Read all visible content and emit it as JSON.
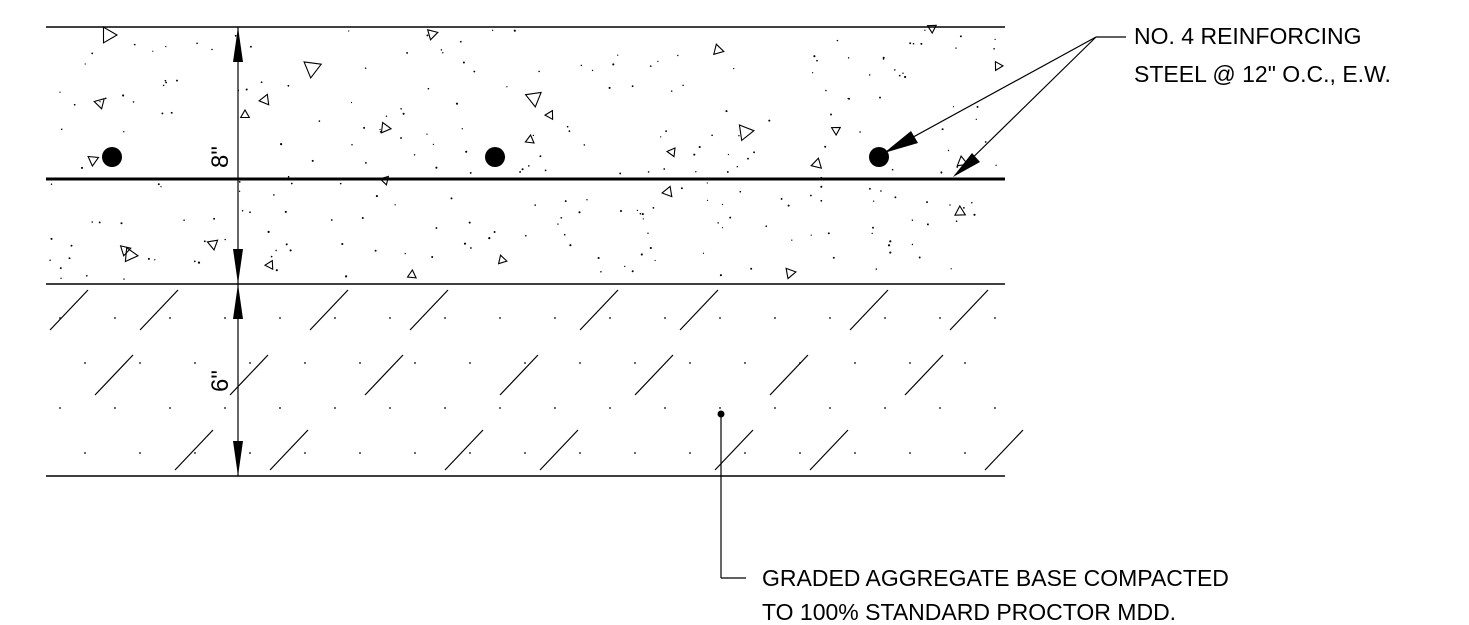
{
  "callouts": {
    "rebar": {
      "line1": "NO. 4 REINFORCING",
      "line2": "STEEL @ 12\" O.C., E.W."
    },
    "base": {
      "line1": "GRADED AGGREGATE BASE COMPACTED",
      "line2": "TO 100% STANDARD PROCTOR MDD."
    }
  },
  "dimensions": {
    "slab_thickness": "8\"",
    "base_thickness": "6\""
  }
}
